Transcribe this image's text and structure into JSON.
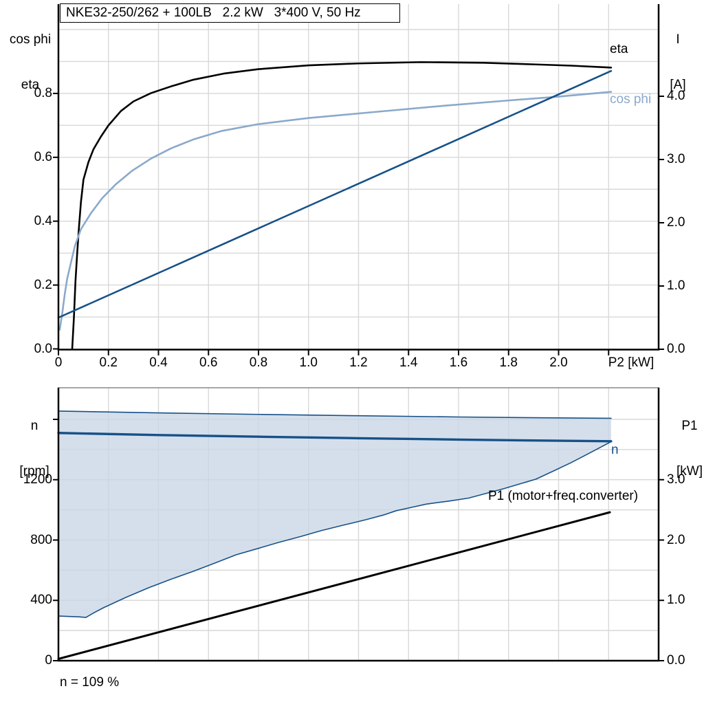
{
  "title": "NKE32-250/262 + 100LB   2.2 kW   3*400 V, 50 Hz",
  "footer_note": "n = 109 %",
  "colors": {
    "black": "#000000",
    "dark_blue": "#165188",
    "light_blue": "#8aa9cb",
    "area_fill": "#c9d6e5",
    "grid": "#d8d8d8",
    "top_border_gray": "#888888",
    "background": "#ffffff"
  },
  "chart_data": [
    {
      "id": "top",
      "type": "line",
      "title": "NKE32-250/262 + 100LB   2.2 kW   3*400 V, 50 Hz",
      "x_axis": {
        "label": "P2 [kW]",
        "min": 0,
        "max": 2.4,
        "ticks": [
          0,
          0.2,
          0.4,
          0.6,
          0.8,
          1.0,
          1.2,
          1.4,
          1.6,
          1.8,
          2.0,
          2.2
        ],
        "tick_labels": [
          "0",
          "0.2",
          "0.4",
          "0.6",
          "0.8",
          "1.0",
          "1.2",
          "1.4",
          "1.6",
          "1.8",
          "2.0",
          ""
        ]
      },
      "y_axis_left": {
        "label_lines": [
          "cos phi",
          "eta"
        ],
        "min": 0,
        "max": 1.08,
        "ticks": [
          0,
          0.2,
          0.4,
          0.6,
          0.8
        ],
        "tick_labels": [
          "0.0",
          "0.2",
          "0.4",
          "0.6",
          "0.8"
        ]
      },
      "y_axis_right": {
        "label_lines": [
          "I",
          "[A]"
        ],
        "min": 0,
        "max": 5.45,
        "ticks": [
          0,
          1,
          2,
          3,
          4
        ],
        "tick_labels": [
          "0.0",
          "1.0",
          "2.0",
          "3.0",
          "4.0"
        ]
      },
      "grid": true,
      "series": [
        {
          "name": "eta",
          "label": "eta",
          "axis": "left",
          "color": "black",
          "width": 2.6,
          "points": [
            [
              0.055,
              0.0
            ],
            [
              0.062,
              0.1
            ],
            [
              0.068,
              0.21
            ],
            [
              0.075,
              0.3
            ],
            [
              0.082,
              0.38
            ],
            [
              0.09,
              0.46
            ],
            [
              0.1,
              0.53
            ],
            [
              0.12,
              0.585
            ],
            [
              0.14,
              0.625
            ],
            [
              0.17,
              0.665
            ],
            [
              0.2,
              0.7
            ],
            [
              0.25,
              0.745
            ],
            [
              0.3,
              0.775
            ],
            [
              0.37,
              0.801
            ],
            [
              0.45,
              0.822
            ],
            [
              0.54,
              0.843
            ],
            [
              0.66,
              0.862
            ],
            [
              0.8,
              0.876
            ],
            [
              1.0,
              0.888
            ],
            [
              1.2,
              0.894
            ],
            [
              1.45,
              0.898
            ],
            [
              1.7,
              0.896
            ],
            [
              1.9,
              0.891
            ],
            [
              2.05,
              0.887
            ],
            [
              2.21,
              0.881
            ]
          ]
        },
        {
          "name": "cos phi",
          "label": "cos phi",
          "axis": "left",
          "color": "light_blue",
          "width": 2.6,
          "points": [
            [
              0.005,
              0.06
            ],
            [
              0.015,
              0.11
            ],
            [
              0.025,
              0.17
            ],
            [
              0.035,
              0.22
            ],
            [
              0.05,
              0.27
            ],
            [
              0.065,
              0.32
            ],
            [
              0.09,
              0.375
            ],
            [
              0.13,
              0.425
            ],
            [
              0.175,
              0.472
            ],
            [
              0.23,
              0.516
            ],
            [
              0.295,
              0.558
            ],
            [
              0.37,
              0.596
            ],
            [
              0.45,
              0.628
            ],
            [
              0.54,
              0.656
            ],
            [
              0.65,
              0.682
            ],
            [
              0.8,
              0.704
            ],
            [
              1.0,
              0.723
            ],
            [
              1.28,
              0.743
            ],
            [
              1.55,
              0.762
            ],
            [
              1.8,
              0.778
            ],
            [
              2.0,
              0.79
            ],
            [
              2.21,
              0.805
            ]
          ]
        },
        {
          "name": "I",
          "label": "",
          "axis": "right",
          "color": "dark_blue",
          "width": 2.6,
          "points": [
            [
              0.0,
              0.5
            ],
            [
              2.21,
              4.4
            ]
          ]
        }
      ]
    },
    {
      "id": "bottom",
      "type": "line",
      "x_axis": {
        "label": "",
        "min": 0,
        "max": 2.4,
        "ticks": [],
        "tick_labels": []
      },
      "y_axis_left": {
        "label_lines": [
          "n",
          "[rpm]"
        ],
        "min": 0,
        "max": 1810,
        "ticks": [
          0,
          400,
          800,
          1200,
          1600
        ],
        "tick_labels": [
          "0",
          "400",
          "800",
          "1200",
          ""
        ]
      },
      "y_axis_right": {
        "label_lines": [
          "P1",
          "[kW]"
        ],
        "min": 0,
        "max": 4.52,
        "ticks": [
          0,
          1,
          2,
          3
        ],
        "tick_labels": [
          "0.0",
          "1.0",
          "2.0",
          "3.0"
        ]
      },
      "grid": true,
      "series": [
        {
          "name": "n",
          "label": "n",
          "axis": "left",
          "color": "dark_blue",
          "width": 3.4,
          "points": [
            [
              0,
              1510
            ],
            [
              0.4,
              1496
            ],
            [
              0.8,
              1485
            ],
            [
              1.2,
              1475
            ],
            [
              1.6,
              1466
            ],
            [
              1.9,
              1460
            ],
            [
              2.21,
              1455
            ]
          ]
        },
        {
          "name": "speed range upper",
          "label": "",
          "role": "envelope_upper",
          "axis": "left",
          "color": "dark_blue",
          "width": 1.6,
          "points": [
            [
              0,
              1655
            ],
            [
              0.4,
              1643
            ],
            [
              0.8,
              1633
            ],
            [
              1.2,
              1624
            ],
            [
              1.6,
              1616
            ],
            [
              1.9,
              1611
            ],
            [
              2.21,
              1607
            ]
          ]
        },
        {
          "name": "speed range lower",
          "label": "",
          "role": "envelope_lower",
          "axis": "left",
          "color": "dark_blue",
          "width": 1.6,
          "points": [
            [
              0,
              296
            ],
            [
              0.08,
              291
            ],
            [
              0.11,
              287
            ],
            [
              0.14,
              316
            ],
            [
              0.18,
              351
            ],
            [
              0.27,
              420
            ],
            [
              0.36,
              483
            ],
            [
              0.45,
              540
            ],
            [
              0.54,
              593
            ],
            [
              0.63,
              650
            ],
            [
              0.71,
              702
            ],
            [
              0.8,
              745
            ],
            [
              0.88,
              784
            ],
            [
              0.97,
              824
            ],
            [
              1.05,
              862
            ],
            [
              1.14,
              899
            ],
            [
              1.23,
              935
            ],
            [
              1.3,
              966
            ],
            [
              1.35,
              994
            ],
            [
              1.41,
              1016
            ],
            [
              1.47,
              1038
            ],
            [
              1.56,
              1058
            ],
            [
              1.64,
              1078
            ],
            [
              1.78,
              1140
            ],
            [
              1.91,
              1204
            ],
            [
              1.98,
              1258
            ],
            [
              2.05,
              1313
            ],
            [
              2.13,
              1382
            ],
            [
              2.21,
              1452
            ]
          ]
        },
        {
          "name": "P1 (motor+freq.converter)",
          "label": "P1 (motor+freq.converter)",
          "axis": "right",
          "color": "black",
          "width": 3.0,
          "points": [
            [
              0,
              0.03
            ],
            [
              2.205,
              2.46
            ]
          ]
        }
      ],
      "area": {
        "fill": "area_fill",
        "opacity": 0.78,
        "between": [
          "envelope_upper",
          "envelope_lower"
        ]
      }
    }
  ]
}
